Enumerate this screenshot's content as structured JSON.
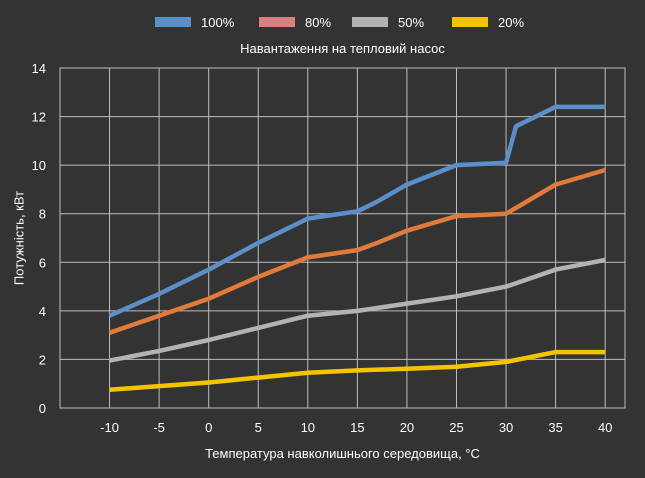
{
  "chart_data": {
    "type": "line",
    "title": "Навантаження на тепловий насос",
    "xlabel": "Температура навколишнього середовища, °С",
    "ylabel": "Потужність, кВт",
    "xlim": [
      -15,
      42
    ],
    "ylim": [
      0,
      14
    ],
    "xticks": [
      -10,
      -5,
      0,
      5,
      10,
      15,
      20,
      25,
      30,
      35,
      40
    ],
    "yticks": [
      0,
      2,
      4,
      6,
      8,
      10,
      12,
      14
    ],
    "grid": true,
    "legend_position": "top",
    "series": [
      {
        "name": "100%",
        "color": "#5b8fc9",
        "legend_color": "#5b8fc9",
        "x": [
          -10,
          -5,
          0,
          5,
          10,
          15,
          17,
          20,
          25,
          30,
          31,
          35,
          40
        ],
        "y": [
          3.8,
          4.7,
          5.7,
          6.8,
          7.8,
          8.1,
          8.5,
          9.2,
          10.0,
          10.1,
          11.6,
          12.4,
          12.4
        ]
      },
      {
        "name": "80%",
        "color": "#e07b3c",
        "legend_color": "#d98080",
        "x": [
          -10,
          -5,
          0,
          5,
          10,
          15,
          17,
          20,
          25,
          30,
          35,
          40
        ],
        "y": [
          3.1,
          3.8,
          4.5,
          5.4,
          6.2,
          6.5,
          6.8,
          7.3,
          7.9,
          8.0,
          9.2,
          9.8
        ]
      },
      {
        "name": "50%",
        "color": "#b3b3b3",
        "legend_color": "#b3b3b3",
        "x": [
          -10,
          -5,
          0,
          5,
          10,
          15,
          20,
          25,
          30,
          35,
          40
        ],
        "y": [
          1.95,
          2.35,
          2.8,
          3.3,
          3.8,
          4.0,
          4.3,
          4.6,
          5.0,
          5.7,
          6.1
        ]
      },
      {
        "name": "20%",
        "color": "#f5c400",
        "legend_color": "#f5c400",
        "x": [
          -10,
          -5,
          0,
          5,
          10,
          15,
          20,
          25,
          30,
          35,
          40
        ],
        "y": [
          0.75,
          0.9,
          1.05,
          1.25,
          1.45,
          1.55,
          1.62,
          1.7,
          1.9,
          2.3,
          2.3
        ]
      }
    ]
  }
}
